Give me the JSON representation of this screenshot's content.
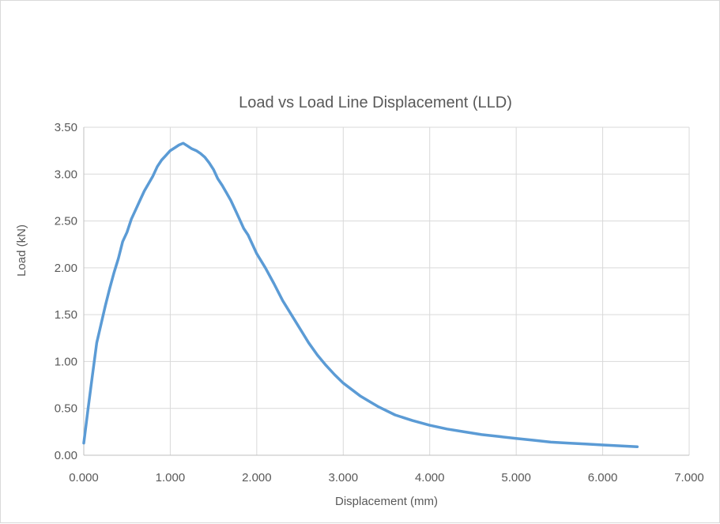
{
  "chart_data": {
    "type": "line",
    "title": "Load vs Load Line Displacement (LLD)",
    "xlabel": "Displacement  (mm)",
    "ylabel": "Load (kN)",
    "xlim": [
      0,
      7
    ],
    "ylim": [
      0,
      3.5
    ],
    "x_ticks": [
      "0.000",
      "1.000",
      "2.000",
      "3.000",
      "4.000",
      "5.000",
      "6.000",
      "7.000"
    ],
    "y_ticks": [
      "0.00",
      "0.50",
      "1.00",
      "1.50",
      "2.00",
      "2.50",
      "3.00",
      "3.50"
    ],
    "grid": true,
    "legend": "none",
    "line_color": "#5b9bd5",
    "series": [
      {
        "x": [
          0.0,
          0.05,
          0.1,
          0.15,
          0.2,
          0.25,
          0.3,
          0.35,
          0.4,
          0.45,
          0.5,
          0.55,
          0.6,
          0.65,
          0.7,
          0.75,
          0.8,
          0.85,
          0.9,
          0.95,
          1.0,
          1.05,
          1.1,
          1.15,
          1.2,
          1.25,
          1.3,
          1.35,
          1.4,
          1.45,
          1.5,
          1.55,
          1.6,
          1.65,
          1.7,
          1.75,
          1.8,
          1.85,
          1.9,
          1.95,
          2.0,
          2.1,
          2.2,
          2.3,
          2.4,
          2.5,
          2.6,
          2.7,
          2.8,
          2.9,
          3.0,
          3.2,
          3.4,
          3.6,
          3.8,
          4.0,
          4.2,
          4.4,
          4.6,
          4.8,
          5.0,
          5.2,
          5.4,
          5.6,
          5.8,
          6.0,
          6.2,
          6.4
        ],
        "y": [
          0.13,
          0.5,
          0.85,
          1.2,
          1.4,
          1.6,
          1.78,
          1.95,
          2.1,
          2.28,
          2.38,
          2.52,
          2.62,
          2.72,
          2.82,
          2.9,
          2.98,
          3.08,
          3.15,
          3.2,
          3.25,
          3.28,
          3.31,
          3.33,
          3.3,
          3.27,
          3.25,
          3.22,
          3.18,
          3.12,
          3.05,
          2.95,
          2.88,
          2.8,
          2.72,
          2.62,
          2.52,
          2.42,
          2.35,
          2.25,
          2.15,
          2.0,
          1.83,
          1.65,
          1.5,
          1.35,
          1.2,
          1.07,
          0.96,
          0.86,
          0.77,
          0.63,
          0.52,
          0.43,
          0.37,
          0.32,
          0.28,
          0.25,
          0.22,
          0.2,
          0.18,
          0.16,
          0.14,
          0.13,
          0.12,
          0.11,
          0.1,
          0.09
        ]
      }
    ]
  }
}
